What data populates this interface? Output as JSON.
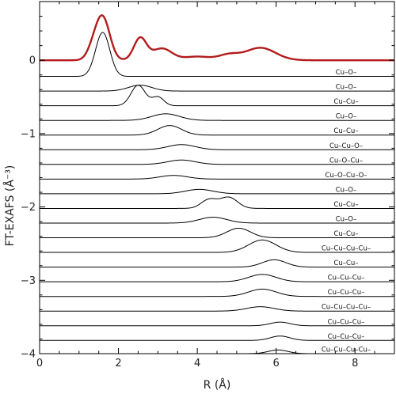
{
  "chart_data": {
    "type": "line",
    "xlabel": "R (Å)",
    "ylabel": "FT-EXAFS (Å⁻³)",
    "xlim": [
      0,
      9
    ],
    "ylim": [
      -4,
      0.8
    ],
    "x_ticks": [
      0,
      2,
      4,
      6,
      8
    ],
    "y_ticks": [
      0,
      -1,
      -2,
      -3,
      -4
    ],
    "experimental": {
      "color": "#b31b1b",
      "baseline": 0,
      "peaks": [
        {
          "center": 1.6,
          "width": 0.18,
          "height": 0.58
        },
        {
          "center": 1.35,
          "width": 0.15,
          "height": 0.12
        },
        {
          "center": 2.55,
          "width": 0.16,
          "height": 0.3
        },
        {
          "center": 3.1,
          "width": 0.25,
          "height": 0.16
        },
        {
          "center": 4.0,
          "width": 0.35,
          "height": 0.05
        },
        {
          "center": 4.8,
          "width": 0.25,
          "height": 0.07
        },
        {
          "center": 5.6,
          "width": 0.38,
          "height": 0.17
        }
      ]
    },
    "series": [
      {
        "name": "Cu–O–",
        "baseline": -0.22,
        "peaks": [
          {
            "center": 1.6,
            "width": 0.18,
            "height": 0.6
          }
        ]
      },
      {
        "name": "Cu–O–",
        "baseline": -0.42,
        "peaks": [
          {
            "center": 2.55,
            "width": 0.3,
            "height": 0.08
          }
        ]
      },
      {
        "name": "Cu–Cu–",
        "baseline": -0.62,
        "peaks": [
          {
            "center": 2.5,
            "width": 0.18,
            "height": 0.28
          },
          {
            "center": 3.0,
            "width": 0.15,
            "height": 0.12
          }
        ]
      },
      {
        "name": "Cu–O–",
        "baseline": -0.82,
        "peaks": [
          {
            "center": 3.2,
            "width": 0.35,
            "height": 0.09
          }
        ]
      },
      {
        "name": "Cu–Cu–",
        "baseline": -1.02,
        "peaks": [
          {
            "center": 3.3,
            "width": 0.3,
            "height": 0.13
          }
        ]
      },
      {
        "name": "Cu–Cu–O–",
        "baseline": -1.22,
        "peaks": [
          {
            "center": 3.6,
            "width": 0.35,
            "height": 0.07
          }
        ]
      },
      {
        "name": "Cu–O–Cu–",
        "baseline": -1.42,
        "peaks": [
          {
            "center": 3.6,
            "width": 0.35,
            "height": 0.06
          }
        ]
      },
      {
        "name": "Cu–O–Cu–O–",
        "baseline": -1.62,
        "peaks": [
          {
            "center": 3.4,
            "width": 0.35,
            "height": 0.05
          }
        ]
      },
      {
        "name": "Cu–O–",
        "baseline": -1.82,
        "peaks": [
          {
            "center": 4.05,
            "width": 0.35,
            "height": 0.06
          }
        ]
      },
      {
        "name": "Cu–Cu–",
        "baseline": -2.02,
        "peaks": [
          {
            "center": 4.3,
            "width": 0.2,
            "height": 0.12
          },
          {
            "center": 4.8,
            "width": 0.22,
            "height": 0.15
          }
        ]
      },
      {
        "name": "Cu–O–",
        "baseline": -2.22,
        "peaks": [
          {
            "center": 4.4,
            "width": 0.35,
            "height": 0.08
          }
        ]
      },
      {
        "name": "Cu–Cu–",
        "baseline": -2.42,
        "peaks": [
          {
            "center": 5.05,
            "width": 0.3,
            "height": 0.13
          }
        ]
      },
      {
        "name": "Cu–Cu–Cu–Cu–",
        "baseline": -2.62,
        "peaks": [
          {
            "center": 5.65,
            "width": 0.35,
            "height": 0.17
          }
        ]
      },
      {
        "name": "Cu–Cu–",
        "baseline": -2.82,
        "peaks": [
          {
            "center": 5.95,
            "width": 0.3,
            "height": 0.1
          }
        ]
      },
      {
        "name": "Cu–Cu–Cu–",
        "baseline": -3.02,
        "peaks": [
          {
            "center": 5.65,
            "width": 0.35,
            "height": 0.1
          }
        ]
      },
      {
        "name": "Cu–Cu–Cu–",
        "baseline": -3.22,
        "peaks": [
          {
            "center": 5.65,
            "width": 0.35,
            "height": 0.1
          }
        ]
      },
      {
        "name": "Cu–Cu–Cu–Cu–",
        "baseline": -3.42,
        "peaks": [
          {
            "center": 5.6,
            "width": 0.35,
            "height": 0.06
          }
        ]
      },
      {
        "name": "Cu–Cu–Cu–",
        "baseline": -3.62,
        "peaks": [
          {
            "center": 6.1,
            "width": 0.25,
            "height": 0.05
          }
        ]
      },
      {
        "name": "Cu–Cu–Cu–",
        "baseline": -3.82,
        "peaks": [
          {
            "center": 6.1,
            "width": 0.25,
            "height": 0.06
          }
        ]
      },
      {
        "name": "Cu–Cu–Cu–Cu–",
        "baseline": -4.0,
        "peaks": [
          {
            "center": 6.05,
            "width": 0.25,
            "height": 0.05
          }
        ]
      }
    ]
  }
}
